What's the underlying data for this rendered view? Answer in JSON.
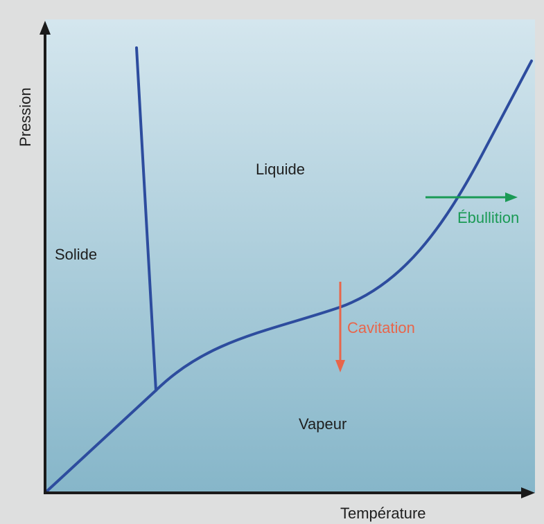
{
  "axes": {
    "x_label": "Température",
    "y_label": "Pression"
  },
  "regions": {
    "solid": "Solide",
    "liquid": "Liquide",
    "vapor": "Vapeur"
  },
  "processes": {
    "boiling": {
      "label": "Ébullition",
      "color": "#1a9a55"
    },
    "cavitation": {
      "label": "Cavitation",
      "color": "#e8654a"
    }
  },
  "colors": {
    "background": "#dedfdf",
    "plot_top": "#d4e6ee",
    "plot_bottom": "#86b6c9",
    "curve": "#2d4c9e",
    "axis": "#1a1a1a"
  }
}
